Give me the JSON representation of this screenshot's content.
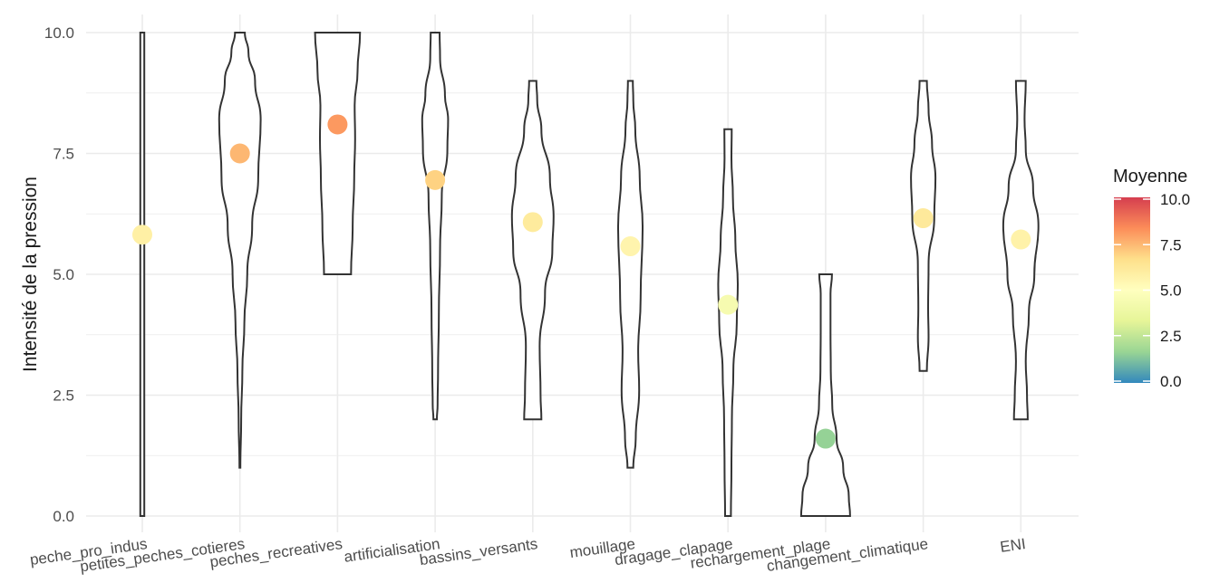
{
  "chart_data": {
    "type": "violin",
    "ylabel": "Intensité de la pression",
    "xlabel": "",
    "ylim": [
      0,
      10
    ],
    "yticks": [
      "0.0",
      "2.5",
      "5.0",
      "7.5",
      "10.0"
    ],
    "grid": true,
    "categories": [
      "peche_pro_indus",
      "petites_peches_cotieres",
      "peches_recreatives",
      "artificialisation",
      "bassins_versants",
      "mouillage",
      "dragage_clapage",
      "rechargement_plage",
      "changement_climatique",
      "ENI"
    ],
    "means": [
      5.82,
      7.5,
      8.1,
      6.95,
      6.08,
      5.58,
      4.37,
      1.6,
      6.16,
      5.72
    ],
    "ranges": [
      [
        0,
        10
      ],
      [
        1,
        10
      ],
      [
        5,
        10
      ],
      [
        2,
        10
      ],
      [
        2,
        9
      ],
      [
        1,
        9
      ],
      [
        0,
        8
      ],
      [
        0,
        5
      ],
      [
        3,
        9
      ],
      [
        2,
        9
      ]
    ],
    "density_profiles": [
      [
        [
          0,
          0.08
        ],
        [
          2,
          0.08
        ],
        [
          4,
          0.08
        ],
        [
          6,
          0.08
        ],
        [
          8,
          0.08
        ],
        [
          10,
          0.08
        ]
      ],
      [
        [
          1,
          0.02
        ],
        [
          2,
          0.05
        ],
        [
          3,
          0.1
        ],
        [
          4,
          0.18
        ],
        [
          5,
          0.3
        ],
        [
          6,
          0.5
        ],
        [
          7,
          0.75
        ],
        [
          8.2,
          0.85
        ],
        [
          9,
          0.62
        ],
        [
          9.6,
          0.35
        ],
        [
          10,
          0.2
        ]
      ],
      [
        [
          5,
          0.55
        ],
        [
          6,
          0.62
        ],
        [
          7,
          0.68
        ],
        [
          7.8,
          0.72
        ],
        [
          8.5,
          0.7
        ],
        [
          9.2,
          0.82
        ],
        [
          10,
          0.92
        ]
      ],
      [
        [
          2,
          0.07
        ],
        [
          2.3,
          0.1
        ],
        [
          3,
          0.12
        ],
        [
          4.2,
          0.15
        ],
        [
          5.5,
          0.2
        ],
        [
          6.6,
          0.27
        ],
        [
          7.6,
          0.5
        ],
        [
          8.2,
          0.53
        ],
        [
          8.7,
          0.4
        ],
        [
          9.5,
          0.2
        ],
        [
          10,
          0.18
        ]
      ],
      [
        [
          2,
          0.35
        ],
        [
          2.5,
          0.32
        ],
        [
          3.5,
          0.28
        ],
        [
          4.6,
          0.5
        ],
        [
          5.5,
          0.8
        ],
        [
          6.2,
          0.85
        ],
        [
          7,
          0.7
        ],
        [
          8,
          0.35
        ],
        [
          8.6,
          0.18
        ],
        [
          9,
          0.15
        ]
      ],
      [
        [
          1,
          0.12
        ],
        [
          1.6,
          0.22
        ],
        [
          2.6,
          0.36
        ],
        [
          3.4,
          0.32
        ],
        [
          4.5,
          0.42
        ],
        [
          6,
          0.5
        ],
        [
          7,
          0.38
        ],
        [
          8,
          0.2
        ],
        [
          8.6,
          0.12
        ],
        [
          9,
          0.1
        ]
      ],
      [
        [
          0,
          0.12
        ],
        [
          1,
          0.14
        ],
        [
          2,
          0.16
        ],
        [
          3,
          0.22
        ],
        [
          4,
          0.36
        ],
        [
          4.8,
          0.4
        ],
        [
          5.7,
          0.3
        ],
        [
          6.6,
          0.2
        ],
        [
          7.4,
          0.14
        ],
        [
          8,
          0.15
        ]
      ],
      [
        [
          0,
          1.0
        ],
        [
          0.4,
          0.95
        ],
        [
          1,
          0.72
        ],
        [
          1.6,
          0.45
        ],
        [
          2.3,
          0.27
        ],
        [
          3,
          0.21
        ],
        [
          3.8,
          0.2
        ],
        [
          4.6,
          0.2
        ],
        [
          5,
          0.26
        ]
      ],
      [
        [
          3,
          0.15
        ],
        [
          3.7,
          0.22
        ],
        [
          4.3,
          0.2
        ],
        [
          5.2,
          0.22
        ],
        [
          6.2,
          0.45
        ],
        [
          7,
          0.5
        ],
        [
          7.7,
          0.36
        ],
        [
          8.4,
          0.22
        ],
        [
          9,
          0.15
        ]
      ],
      [
        [
          2,
          0.28
        ],
        [
          2.5,
          0.25
        ],
        [
          3.2,
          0.2
        ],
        [
          4.2,
          0.33
        ],
        [
          5,
          0.55
        ],
        [
          6,
          0.72
        ],
        [
          6.8,
          0.5
        ],
        [
          7.6,
          0.2
        ],
        [
          8.2,
          0.15
        ],
        [
          9,
          0.2
        ]
      ]
    ],
    "legend": {
      "title": "Moyenne",
      "labels": [
        "10.0",
        "7.5",
        "5.0",
        "2.5",
        "0.0"
      ],
      "colors": [
        "#d53e4f",
        "#fc8d59",
        "#fee08b",
        "#ffffbf",
        "#e6f598",
        "#99d594",
        "#3288bd"
      ],
      "placement": "right"
    }
  }
}
